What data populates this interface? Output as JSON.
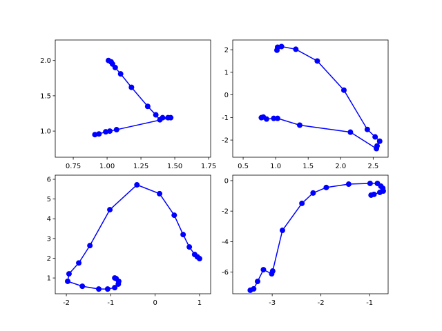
{
  "chart_data": [
    {
      "type": "line",
      "color": "#0000ff",
      "x": [
        1.01,
        1.03,
        1.04,
        1.06,
        1.1,
        1.18,
        1.3,
        1.36,
        1.39,
        1.41,
        1.45,
        1.47,
        1.07,
        1.02,
        0.99,
        0.94,
        0.91
      ],
      "values": [
        2.0,
        1.98,
        1.95,
        1.9,
        1.81,
        1.62,
        1.35,
        1.23,
        1.16,
        1.19,
        1.19,
        1.19,
        1.02,
        1.0,
        0.99,
        0.96,
        0.95
      ],
      "xlim": [
        0.617,
        1.765
      ],
      "ylim": [
        0.63,
        2.29
      ],
      "xticks": [
        {
          "value": 0.75,
          "label": "0.75"
        },
        {
          "value": 1,
          "label": "1.00"
        },
        {
          "value": 1.25,
          "label": "1.25"
        },
        {
          "value": 1.5,
          "label": "1.50"
        },
        {
          "value": 1.75,
          "label": "1.75"
        }
      ],
      "yticks": [
        {
          "value": 1,
          "label": "1.0"
        },
        {
          "value": 1.5,
          "label": "1.5"
        },
        {
          "value": 2,
          "label": "2.0"
        }
      ]
    },
    {
      "type": "line",
      "color": "#0000ff",
      "x": [
        1.02,
        1.03,
        1.09,
        1.31,
        1.64,
        2.05,
        2.41,
        2.53,
        2.6,
        2.56,
        2.55,
        2.15,
        1.37,
        1.03,
        0.97,
        0.86,
        0.81,
        0.78
      ],
      "values": [
        1.98,
        2.11,
        2.14,
        2.02,
        1.5,
        0.21,
        -1.53,
        -1.86,
        -2.05,
        -2.26,
        -2.38,
        -1.65,
        -1.34,
        -1.04,
        -1.04,
        -1.07,
        -0.98,
        -1.01
      ],
      "xlim": [
        0.34,
        2.73
      ],
      "ylim": [
        -2.76,
        2.43
      ],
      "xticks": [
        0.5,
        {
          "value": 1,
          "label": "1.0"
        },
        1.5,
        {
          "value": 2,
          "label": "2.0"
        },
        2.5
      ],
      "yticks": [
        -2,
        -1,
        0,
        1,
        2
      ]
    },
    {
      "type": "line",
      "color": "#0000ff",
      "x": [
        1.0,
        0.95,
        0.89,
        0.77,
        0.63,
        0.43,
        0.1,
        -0.41,
        -1.02,
        -1.47,
        -1.72,
        -1.94,
        -1.97,
        -1.64,
        -1.27,
        -1.07,
        -0.91,
        -0.83,
        -0.82,
        -0.88,
        -0.91
      ],
      "values": [
        1.98,
        2.07,
        2.19,
        2.57,
        3.2,
        4.18,
        5.27,
        5.72,
        4.46,
        2.64,
        1.76,
        1.21,
        0.83,
        0.58,
        0.44,
        0.44,
        0.51,
        0.69,
        0.83,
        0.97,
        1.0
      ],
      "xlim": [
        -2.25,
        1.25
      ],
      "ylim": [
        0.2,
        6.21
      ],
      "xticks": [
        -2,
        -1,
        0,
        1
      ],
      "yticks": [
        1,
        2,
        3,
        4,
        5,
        6
      ]
    },
    {
      "type": "line",
      "color": "#0000ff",
      "x": [
        -3.45,
        -3.38,
        -3.3,
        -3.18,
        -3.01,
        -2.99,
        -2.79,
        -2.39,
        -2.16,
        -1.89,
        -1.43,
        -0.99,
        -0.84,
        -0.77,
        -0.73,
        -0.72,
        -0.79,
        -0.91,
        -0.97
      ],
      "values": [
        -7.19,
        -7.1,
        -6.61,
        -5.84,
        -6.11,
        -5.93,
        -3.26,
        -1.49,
        -0.81,
        -0.45,
        -0.23,
        -0.18,
        -0.18,
        -0.36,
        -0.5,
        -0.68,
        -0.77,
        -0.9,
        -0.95
      ],
      "xlim": [
        -3.81,
        -0.62
      ],
      "ylim": [
        -7.42,
        0.36
      ],
      "xticks": [
        -3,
        -2,
        -1
      ],
      "yticks": [
        -6,
        -4,
        -2,
        0
      ]
    }
  ]
}
